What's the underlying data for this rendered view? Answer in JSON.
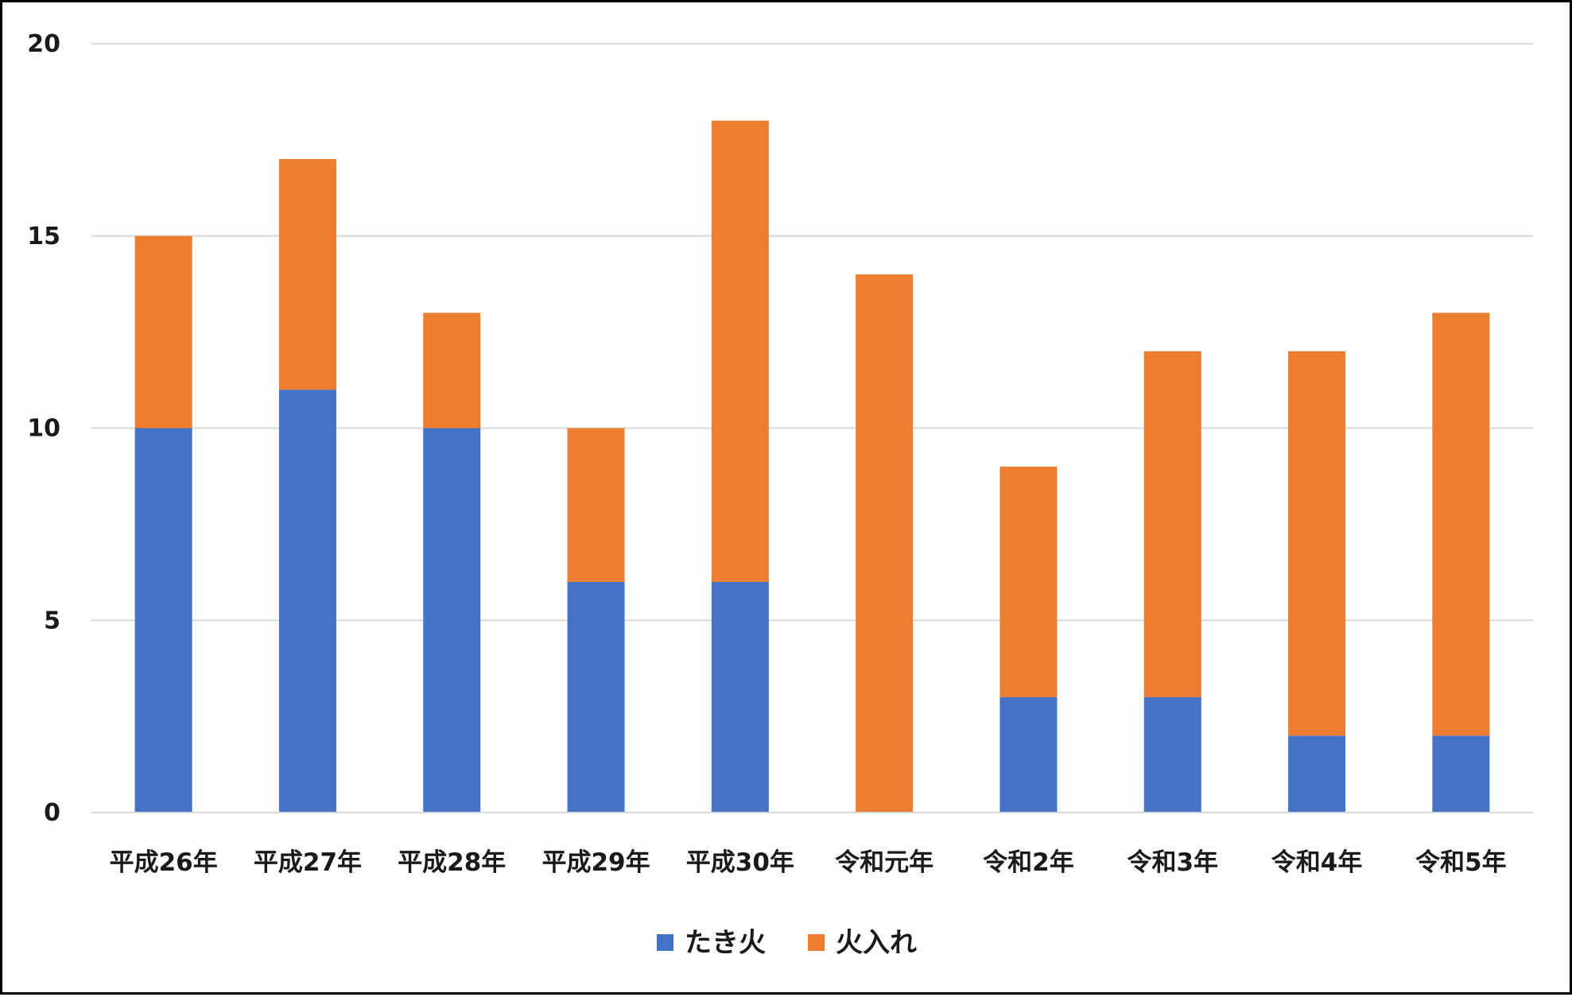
{
  "chart_data": {
    "type": "bar",
    "stacked": true,
    "categories": [
      "平成26年",
      "平成27年",
      "平成28年",
      "平成29年",
      "平成30年",
      "令和元年",
      "令和2年",
      "令和3年",
      "令和4年",
      "令和5年"
    ],
    "series": [
      {
        "name": "たき火",
        "color": "#4472C4",
        "values": [
          10,
          11,
          10,
          6,
          6,
          0,
          3,
          3,
          2,
          2
        ]
      },
      {
        "name": "火入れ",
        "color": "#ED7D31",
        "values": [
          5,
          6,
          3,
          4,
          12,
          14,
          6,
          9,
          10,
          11
        ]
      }
    ],
    "title": "",
    "xlabel": "",
    "ylabel": "",
    "ylim": [
      0,
      20
    ],
    "yticks": [
      0,
      5,
      10,
      15,
      20
    ],
    "grid": true,
    "legend_position": "bottom"
  }
}
